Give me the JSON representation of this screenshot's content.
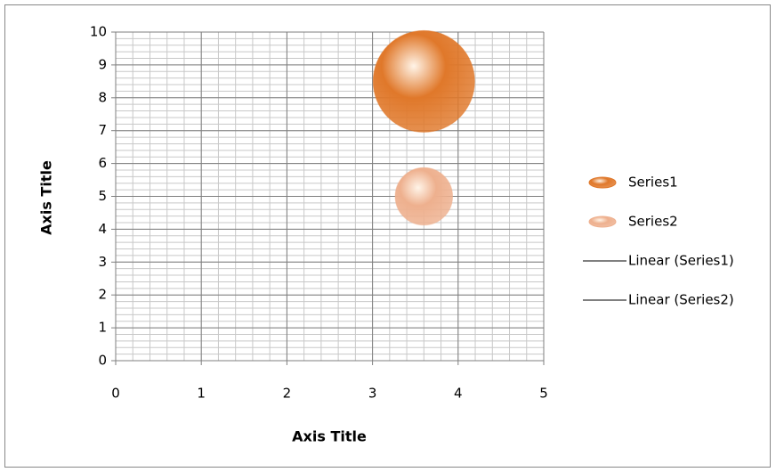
{
  "chart_data": {
    "type": "bubble",
    "x_label": "Axis Title",
    "y_label": "Axis Title",
    "xlim": [
      0,
      5
    ],
    "xticks": [
      0,
      1,
      2,
      3,
      4,
      5
    ],
    "ylim": [
      0,
      10
    ],
    "yticks": [
      0,
      1,
      2,
      3,
      4,
      5,
      6,
      7,
      8,
      9,
      10
    ],
    "grid": true,
    "minor_step": 0.2,
    "legend": "right",
    "series": [
      {
        "name": "Series1",
        "color": "#e0782a",
        "x": [
          3.6
        ],
        "values": [
          8.5
        ],
        "sizes": [
          10
        ],
        "trendline": "Linear (Series1)"
      },
      {
        "name": "Series2",
        "color": "#eeb08e",
        "x": [
          3.6
        ],
        "values": [
          5
        ],
        "sizes": [
          3.2
        ],
        "trendline": "Linear (Series2)"
      }
    ]
  }
}
